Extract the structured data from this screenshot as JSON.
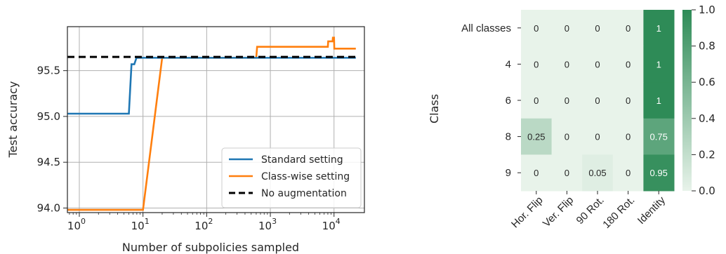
{
  "chart_data": [
    {
      "type": "line",
      "xlabel": "Number of subpolicies sampled",
      "ylabel": "Test accuracy",
      "xscale": "log",
      "xlim": [
        0.65,
        30000
      ],
      "ylim": [
        93.95,
        95.98
      ],
      "x_ticks": [
        1,
        10,
        100,
        1000,
        10000
      ],
      "x_tick_base": "10",
      "x_tick_exponents": [
        "0",
        "1",
        "2",
        "3",
        "4"
      ],
      "y_ticks": [
        "94.0",
        "94.5",
        "95.0",
        "95.5"
      ],
      "grid": true,
      "legend_position": "lower-right",
      "series": [
        {
          "name": "Standard setting",
          "color": "#1f77b4",
          "points": [
            [
              0.65,
              95.03
            ],
            [
              6,
              95.03
            ],
            [
              6.6,
              95.57
            ],
            [
              7.3,
              95.57
            ],
            [
              7.9,
              95.64
            ],
            [
              22000,
              95.64
            ]
          ]
        },
        {
          "name": "Class-wise setting",
          "color": "#ff7f0e",
          "points": [
            [
              0.65,
              93.98
            ],
            [
              10,
              93.98
            ],
            [
              20,
              95.64
            ],
            [
              600,
              95.64
            ],
            [
              620,
              95.76
            ],
            [
              8000,
              95.76
            ],
            [
              8100,
              95.82
            ],
            [
              9500,
              95.82
            ],
            [
              9600,
              95.86
            ],
            [
              10000,
              95.86
            ],
            [
              10100,
              95.74
            ],
            [
              22000,
              95.74
            ]
          ]
        },
        {
          "name": "No augmentation",
          "color": "#000000",
          "dashed": true,
          "points": [
            [
              0.65,
              95.65
            ],
            [
              22000,
              95.65
            ]
          ]
        }
      ]
    },
    {
      "type": "heatmap",
      "ylabel": "Class",
      "rows": [
        "All classes",
        "4",
        "6",
        "8",
        "9"
      ],
      "columns": [
        "Hor. Flip",
        "Ver. Flip",
        "90 Rot.",
        "180 Rot.",
        "Identity"
      ],
      "values": [
        [
          0,
          0,
          0,
          0,
          1
        ],
        [
          0,
          0,
          0,
          0,
          1
        ],
        [
          0,
          0,
          0,
          0,
          1
        ],
        [
          0.25,
          0,
          0,
          0,
          0.75
        ],
        [
          0,
          0,
          0.05,
          0,
          0.95
        ]
      ],
      "cell_labels": [
        [
          "0",
          "0",
          "0",
          "0",
          "1"
        ],
        [
          "0",
          "0",
          "0",
          "0",
          "1"
        ],
        [
          "0",
          "0",
          "0",
          "0",
          "1"
        ],
        [
          "0.25",
          "0",
          "0",
          "0",
          "0.75"
        ],
        [
          "0",
          "0",
          "0.05",
          "0",
          "0.95"
        ]
      ],
      "colorbar_ticks": [
        "0.0",
        "0.2",
        "0.4",
        "0.6",
        "0.8",
        "1.0"
      ],
      "colorbar_range": [
        0,
        1
      ],
      "cmap_low": "#e8f3ea",
      "cmap_high": "#2e8b57"
    }
  ]
}
